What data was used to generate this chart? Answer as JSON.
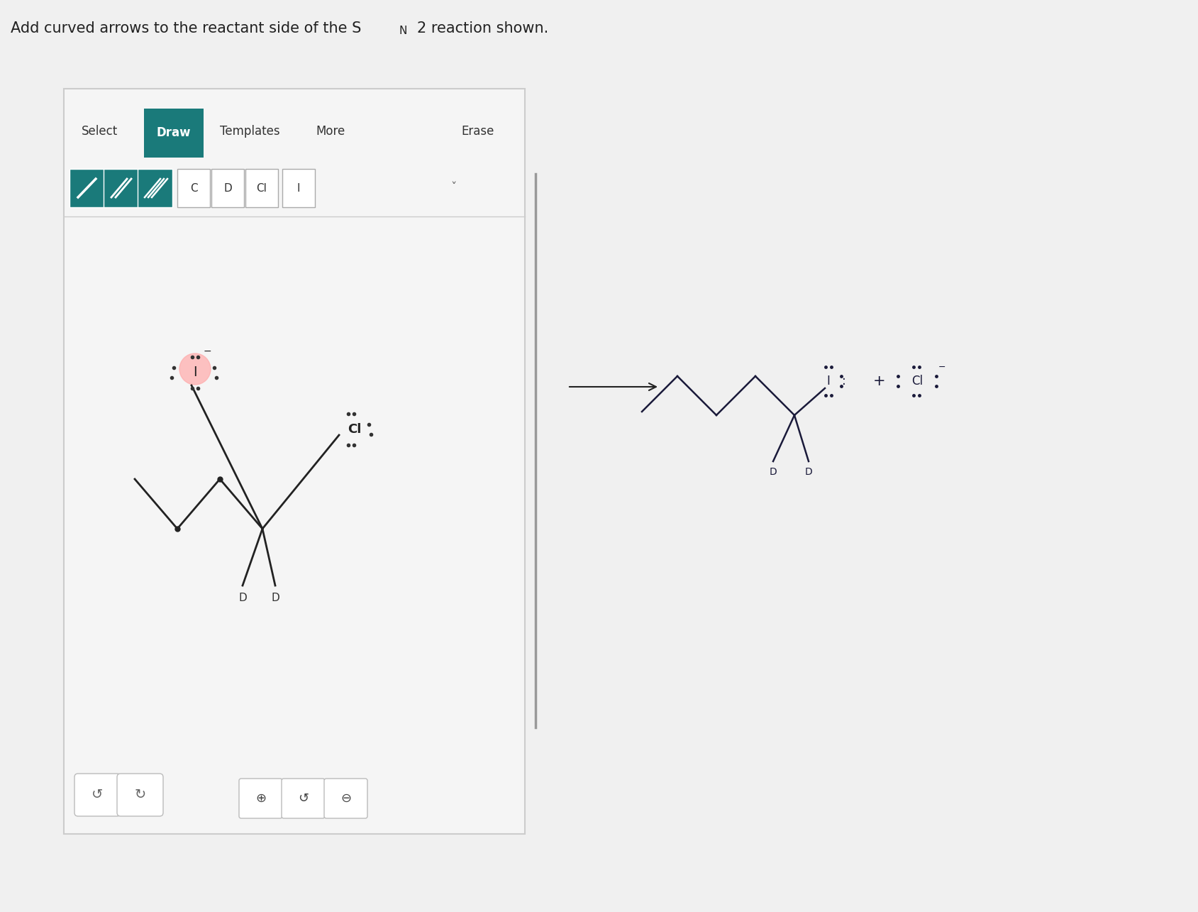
{
  "title_text": "Add curved arrows to the reactant side of the S",
  "title_sub": "N",
  "title_sub2": "2",
  "title_suffix": " reaction shown.",
  "bg_color": "#f0f0f0",
  "panel_border": "#cccccc",
  "draw_btn_color": "#1a7a7a",
  "select_text": "#333333",
  "templates_text": "#333333",
  "more_text": "#333333",
  "erase_text": "#333333",
  "bond_btn_teal": "#1a7a7a",
  "atom_btn_border": "#aaaaaa",
  "molecule_color": "#222222",
  "lone_pair_color": "#333333",
  "highlight_color": "#ffaaaa",
  "arrow_color": "#222222",
  "product_color": "#1a1a3a",
  "divider_color": "#999999",
  "panel_face": "#f5f5f5"
}
